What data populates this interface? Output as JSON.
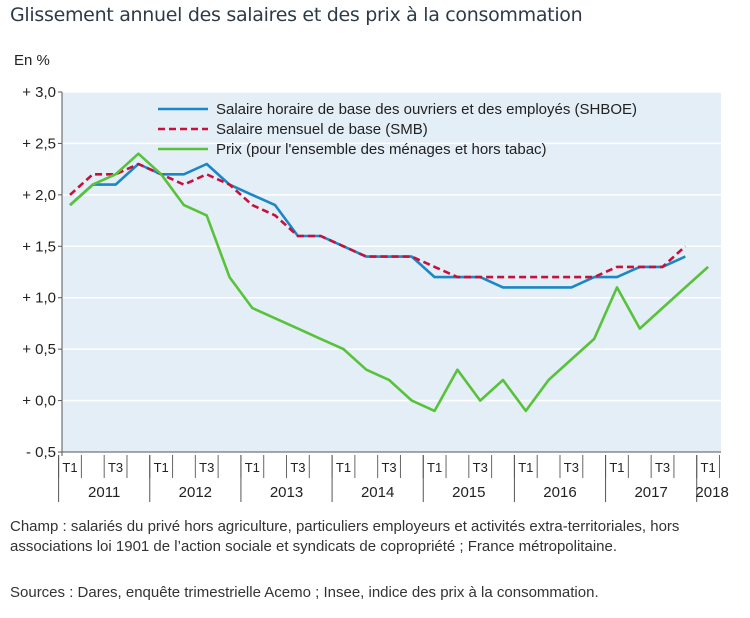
{
  "chart_data": {
    "type": "line",
    "title": "Glissement annuel des salaires et des prix à la consommation",
    "ylabel": "En %",
    "ylim": [
      -0.5,
      3.0
    ],
    "yticks": [
      {
        "value": 3.0,
        "label": "+ 3,0"
      },
      {
        "value": 2.5,
        "label": "+ 2,5"
      },
      {
        "value": 2.0,
        "label": "+ 2,0"
      },
      {
        "value": 1.5,
        "label": "+ 1,5"
      },
      {
        "value": 1.0,
        "label": "+ 1,0"
      },
      {
        "value": 0.5,
        "label": "+ 0,5"
      },
      {
        "value": 0.0,
        "label": "+ 0,0"
      },
      {
        "value": -0.5,
        "label": "- 0,5"
      }
    ],
    "quarter_labels": [
      "T1",
      "",
      "T3",
      "",
      "T1",
      "",
      "T3",
      "",
      "T1",
      "",
      "T3",
      "",
      "T1",
      "",
      "T3",
      "",
      "T1",
      "",
      "T3",
      "",
      "T1",
      "",
      "T3",
      "",
      "T1",
      "",
      "T3",
      "",
      "T1"
    ],
    "years": [
      "2011",
      "2012",
      "2013",
      "2014",
      "2015",
      "2016",
      "2017",
      "2018"
    ],
    "legend_position": "top-right",
    "series": [
      {
        "name": "Salaire horaire de base des ouvriers et des employés (SHBOE)",
        "color": "#1a87c6",
        "dash": "solid",
        "values": [
          1.9,
          2.1,
          2.1,
          2.3,
          2.2,
          2.2,
          2.3,
          2.1,
          2.0,
          1.9,
          1.6,
          1.6,
          1.5,
          1.4,
          1.4,
          1.4,
          1.2,
          1.2,
          1.2,
          1.1,
          1.1,
          1.1,
          1.1,
          1.2,
          1.2,
          1.3,
          1.3,
          1.4
        ]
      },
      {
        "name": "Salaire mensuel de base (SMB)",
        "color": "#c8103c",
        "dash": "dashed",
        "values": [
          2.0,
          2.2,
          2.2,
          2.3,
          2.2,
          2.1,
          2.2,
          2.1,
          1.9,
          1.8,
          1.6,
          1.6,
          1.5,
          1.4,
          1.4,
          1.4,
          1.3,
          1.2,
          1.2,
          1.2,
          1.2,
          1.2,
          1.2,
          1.2,
          1.3,
          1.3,
          1.3,
          1.5
        ]
      },
      {
        "name": "Prix (pour l'ensemble des ménages et hors tabac)",
        "color": "#58c23a",
        "dash": "solid",
        "values": [
          1.9,
          2.1,
          2.2,
          2.4,
          2.2,
          1.9,
          1.8,
          1.2,
          0.9,
          0.8,
          0.7,
          0.6,
          0.5,
          0.3,
          0.2,
          0.0,
          -0.1,
          0.3,
          0.0,
          0.2,
          -0.1,
          0.2,
          0.4,
          0.6,
          1.1,
          0.7,
          0.9,
          1.1,
          1.3
        ]
      }
    ]
  },
  "notes": {
    "champ": "Champ : salariés du privé hors agriculture, particuliers employeurs et activités extra-territoriales, hors associations loi 1901 de l’action sociale et syndicats de copropriété ; France métropolitaine.",
    "sources": "Sources : Dares, enquête trimestrielle Acemo ; Insee, indice des prix à la consommation."
  }
}
